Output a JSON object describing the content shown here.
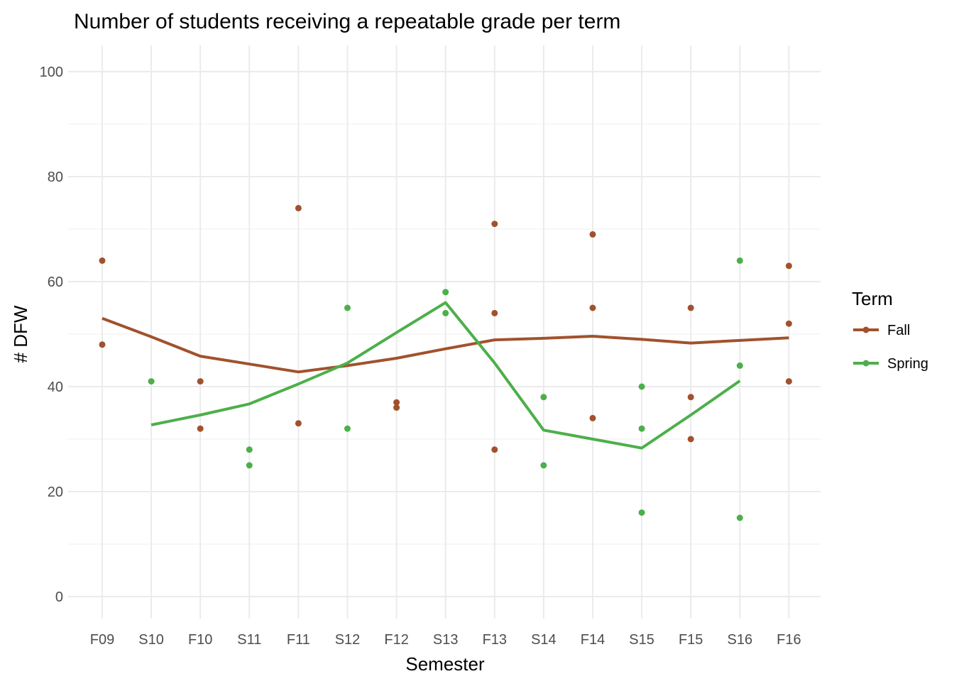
{
  "chart_data": {
    "type": "scatter",
    "title": "Number of students receiving a repeatable grade per term",
    "xlabel": "Semester",
    "ylabel": "# DFW",
    "categories": [
      "F09",
      "S10",
      "F10",
      "S11",
      "F11",
      "S12",
      "F12",
      "S13",
      "F13",
      "S14",
      "F14",
      "S15",
      "F15",
      "S16",
      "F16"
    ],
    "ylim": [
      -4,
      105
    ],
    "y_ticks": [
      0,
      20,
      40,
      60,
      80,
      100
    ],
    "y_tick_labels": [
      "0",
      "20",
      "40",
      "60",
      "80",
      "100"
    ],
    "grid": true,
    "legend": {
      "title": "Term",
      "position": "right"
    },
    "series": [
      {
        "name": "Fall",
        "color": "#a0522d",
        "points": [
          {
            "x": "F09",
            "y": 64
          },
          {
            "x": "F09",
            "y": 48
          },
          {
            "x": "F10",
            "y": 41
          },
          {
            "x": "F10",
            "y": 32
          },
          {
            "x": "F11",
            "y": 74
          },
          {
            "x": "F11",
            "y": 33
          },
          {
            "x": "F12",
            "y": 37
          },
          {
            "x": "F12",
            "y": 36
          },
          {
            "x": "F13",
            "y": 71
          },
          {
            "x": "F13",
            "y": 54
          },
          {
            "x": "F13",
            "y": 28
          },
          {
            "x": "F14",
            "y": 69
          },
          {
            "x": "F14",
            "y": 55
          },
          {
            "x": "F14",
            "y": 34
          },
          {
            "x": "F15",
            "y": 55
          },
          {
            "x": "F15",
            "y": 38
          },
          {
            "x": "F15",
            "y": 30
          },
          {
            "x": "F16",
            "y": 63
          },
          {
            "x": "F16",
            "y": 52
          },
          {
            "x": "F16",
            "y": 41
          }
        ],
        "smooth_line": {
          "x": [
            "F09",
            "S10",
            "F10",
            "S11",
            "F11",
            "S12",
            "F12",
            "S13",
            "F13",
            "S14",
            "F14",
            "S15",
            "F15",
            "S16",
            "F16"
          ],
          "y": [
            53,
            49.5,
            45.8,
            44.3,
            42.8,
            44,
            45.4,
            47.2,
            48.9,
            49.2,
            49.6,
            49,
            48.3,
            48.8,
            49.3
          ]
        }
      },
      {
        "name": "Spring",
        "color": "#4daf4a",
        "points": [
          {
            "x": "S10",
            "y": 41
          },
          {
            "x": "S11",
            "y": 28
          },
          {
            "x": "S11",
            "y": 25
          },
          {
            "x": "S12",
            "y": 55
          },
          {
            "x": "S12",
            "y": 32
          },
          {
            "x": "S13",
            "y": 58
          },
          {
            "x": "S13",
            "y": 54
          },
          {
            "x": "S14",
            "y": 38
          },
          {
            "x": "S14",
            "y": 25
          },
          {
            "x": "S15",
            "y": 40
          },
          {
            "x": "S15",
            "y": 32
          },
          {
            "x": "S15",
            "y": 16
          },
          {
            "x": "S16",
            "y": 64
          },
          {
            "x": "S16",
            "y": 44
          },
          {
            "x": "S16",
            "y": 15
          }
        ],
        "smooth_line": {
          "x": [
            "S10",
            "F10",
            "S11",
            "F11",
            "S12",
            "F12",
            "S13",
            "F13",
            "S14",
            "F14",
            "S15",
            "F15",
            "S16"
          ],
          "y": [
            32.7,
            34.6,
            36.7,
            40.5,
            44.5,
            50.3,
            56,
            44.5,
            31.7,
            30,
            28.3,
            34.6,
            41.1
          ]
        }
      }
    ]
  }
}
